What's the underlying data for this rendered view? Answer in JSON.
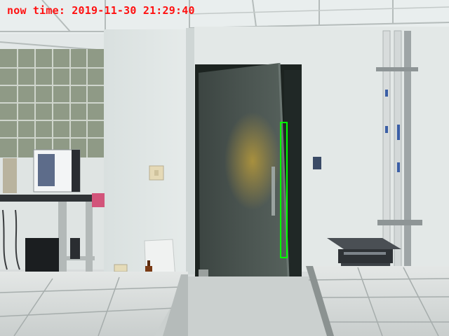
{
  "overlay": {
    "timestamp_label": "now time: 2019-11-30 21:29:40"
  },
  "colors": {
    "timestamp": "#ff1010",
    "detection_box": "#00ff00"
  }
}
